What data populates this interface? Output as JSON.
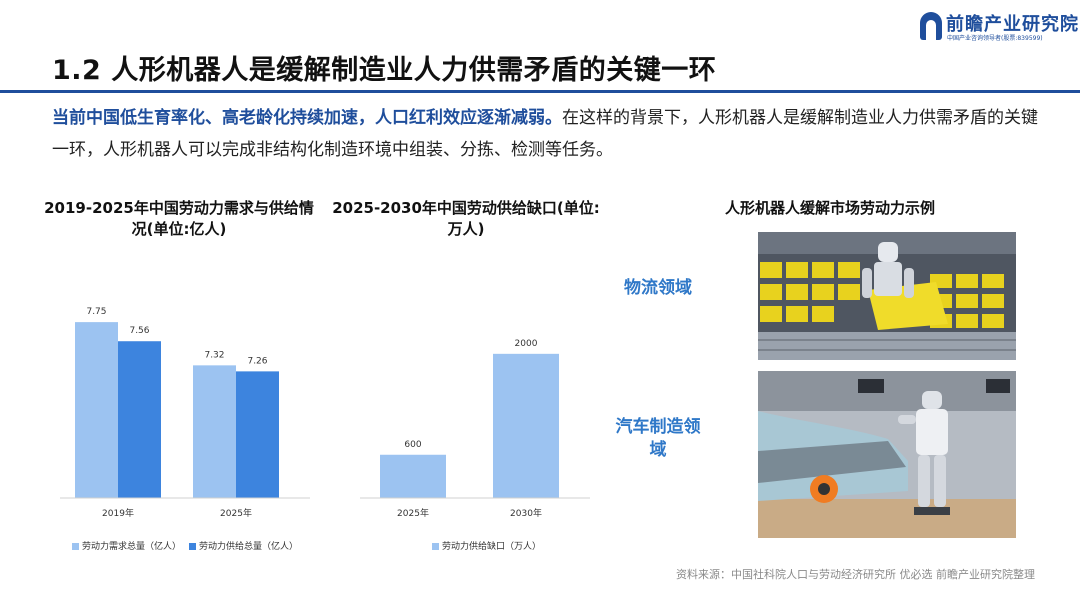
{
  "logo": {
    "brand": "前瞻产业研究院",
    "sub": "中国产业咨询领导者(股票:839599)"
  },
  "title": "1.2 人形机器人是缓解制造业人力供需矛盾的关键一环",
  "intro": {
    "highlight": "当前中国低生育率化、高老龄化持续加速，人口红利效应逐渐减弱。",
    "rest": "在这样的背景下，人形机器人是缓解制造业人力供需矛盾的关键一环，人形机器人可以完成非结构化制造环境中组装、分拣、检测等任务。"
  },
  "chart_data": [
    {
      "type": "bar",
      "title": "2019-2025年中国劳动力需求与供给情况(单位:亿人)",
      "categories": [
        "2019年",
        "2025年"
      ],
      "series": [
        {
          "name": "劳动力需求总量（亿人）",
          "values": [
            7.75,
            7.32
          ],
          "color": "#9cc3f1"
        },
        {
          "name": "劳动力供给总量（亿人）",
          "values": [
            7.56,
            7.26
          ],
          "color": "#3d84de"
        }
      ],
      "value_labels": [
        [
          "7.75",
          "7.32"
        ],
        [
          "7.56",
          "7.26"
        ]
      ],
      "ylim": [
        6.0,
        8.0
      ],
      "grid": false,
      "legend": "bottom"
    },
    {
      "type": "bar",
      "title": "2025-2030年中国劳动供给缺口(单位:万人)",
      "categories": [
        "2025年",
        "2030年"
      ],
      "series": [
        {
          "name": "劳动力供给缺口（万人）",
          "values": [
            600,
            2000
          ],
          "color": "#9cc3f1"
        }
      ],
      "value_labels": [
        [
          "600",
          "2000"
        ]
      ],
      "ylim": [
        0,
        2400
      ],
      "grid": false,
      "legend": "bottom"
    }
  ],
  "panel3": {
    "title": "人形机器人缓解市场劳动力示例",
    "field1": "物流领域",
    "field2": "汽车制造领域"
  },
  "source": "资料来源：中国社科院人口与劳动经济研究所 优必选 前瞻产业研究院整理"
}
